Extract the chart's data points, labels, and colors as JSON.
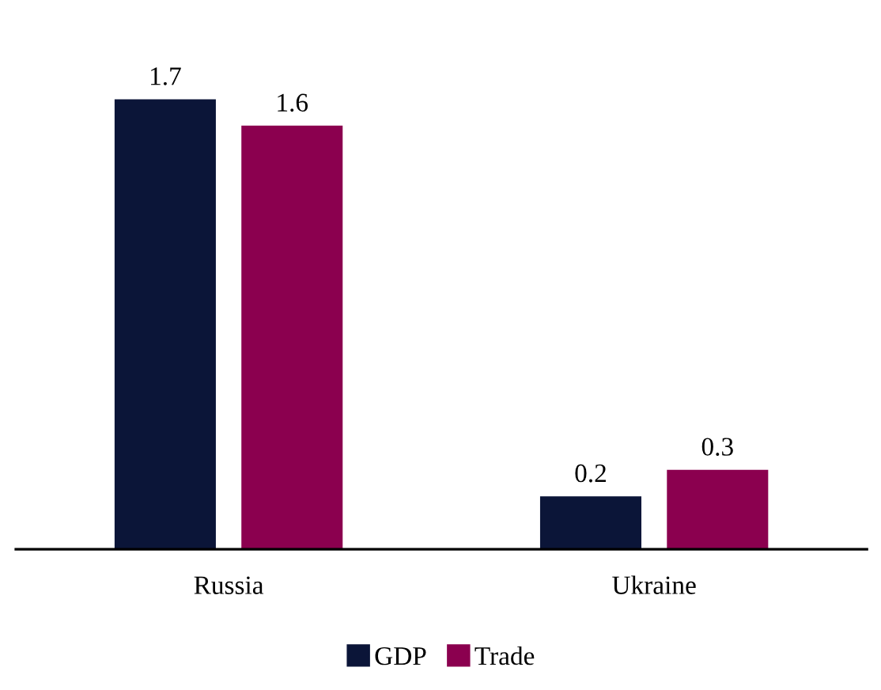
{
  "chart_data": {
    "type": "bar",
    "categories": [
      "Russia",
      "Ukraine"
    ],
    "series": [
      {
        "name": "GDP",
        "color": "#0b1538",
        "values": [
          1.7,
          0.2
        ]
      },
      {
        "name": "Trade",
        "color": "#8b004f",
        "values": [
          1.6,
          0.3
        ]
      }
    ],
    "data_labels": true,
    "legend": "bottom"
  }
}
